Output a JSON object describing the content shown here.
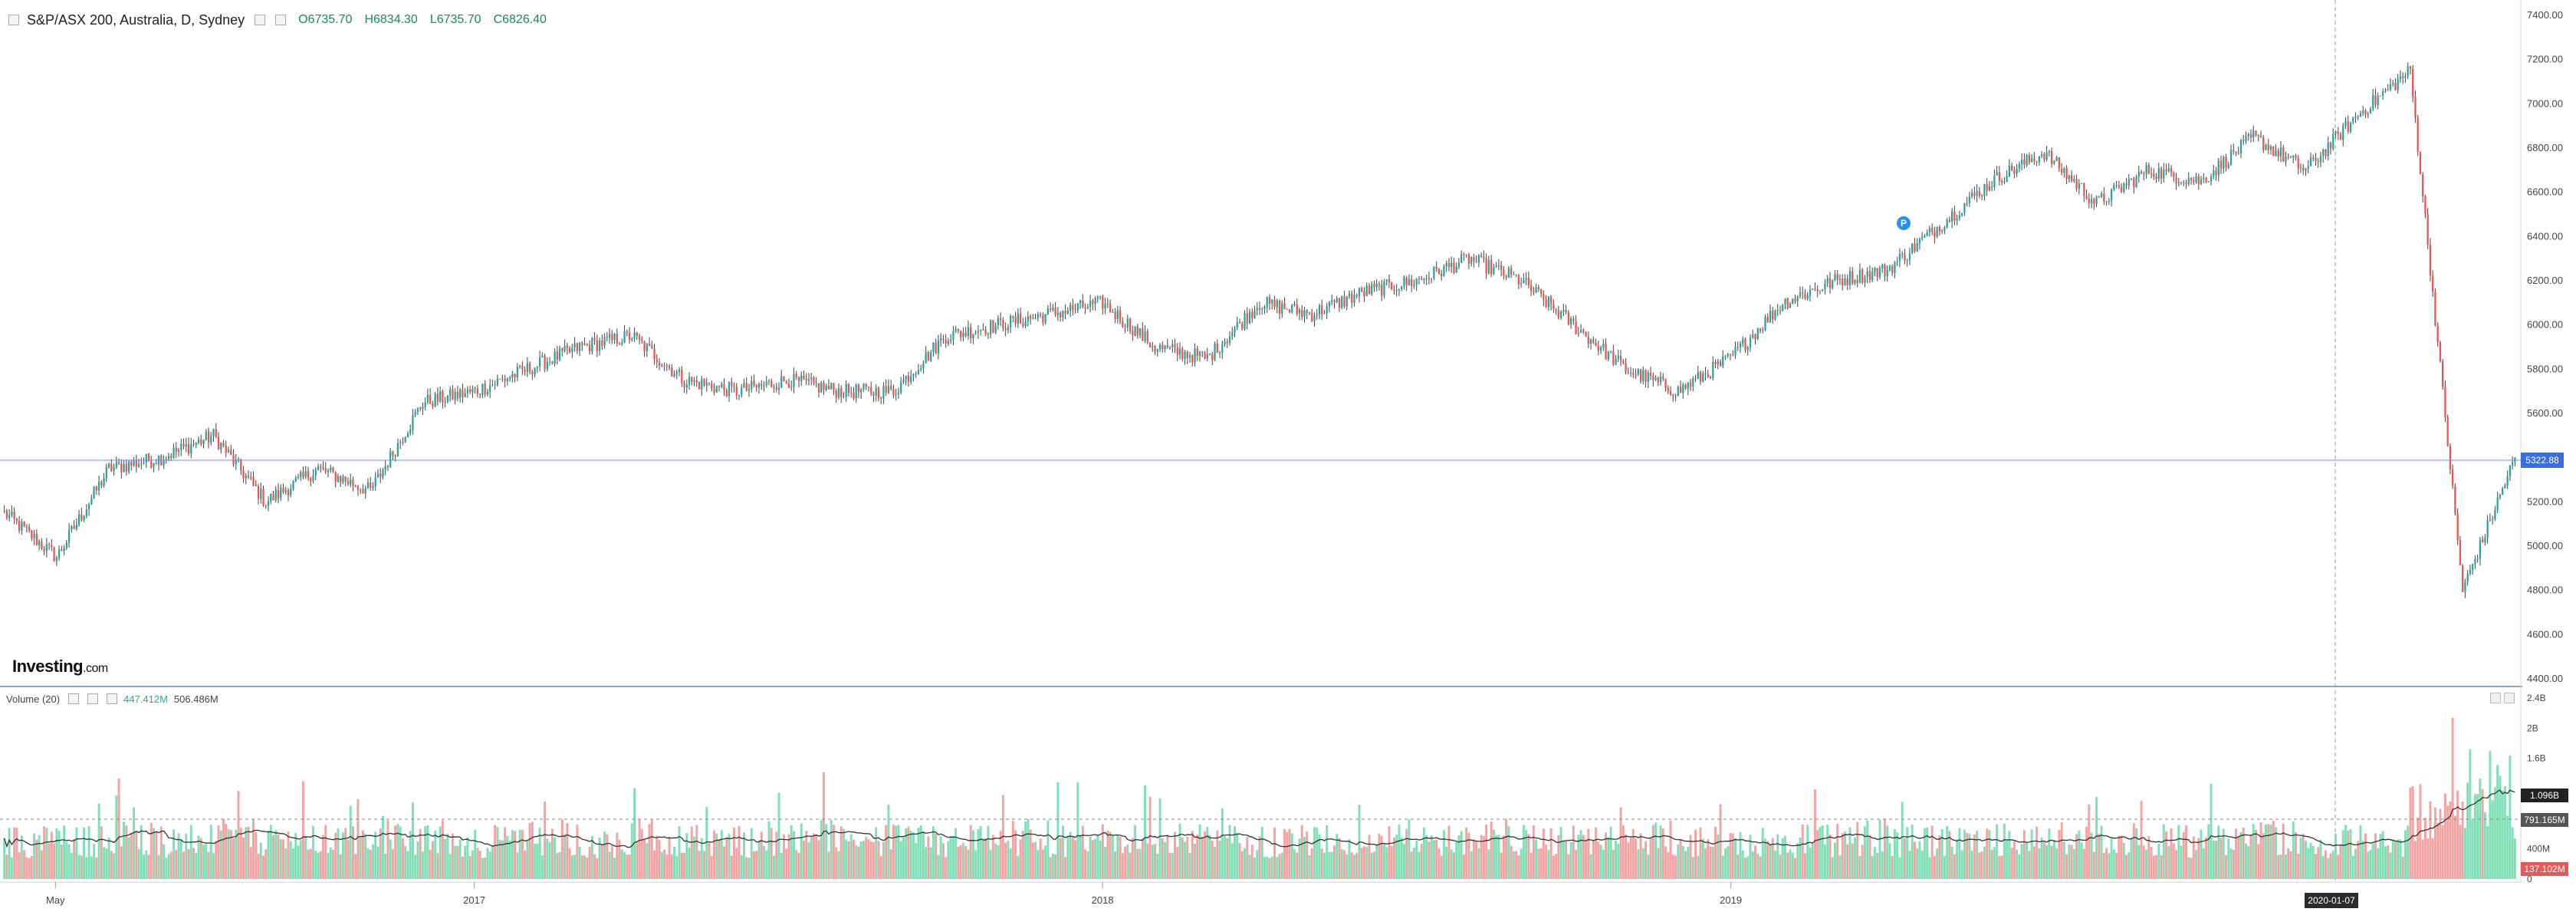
{
  "header": {
    "symbol": "S&P/ASX 200, Australia, D, Sydney",
    "open": "O6735.70",
    "high": "H6834.30",
    "low": "L6735.70",
    "close": "C6826.40"
  },
  "volume_panel": {
    "title": "Volume (20)",
    "value_1": "447.412M",
    "value_2": "506.486M"
  },
  "logo": {
    "main": "Investing",
    "suffix": ".com"
  },
  "price_tag": "5322.88",
  "volume_tags": {
    "a": "1.096B",
    "b": "791.165M",
    "c": "137.102M"
  },
  "crosshair_date": "2020-01-07",
  "event_marker": "P",
  "colors": {
    "up": "#26a69a",
    "down": "#ef5350",
    "vol_up": "#7fe0b8",
    "vol_down": "#f4a3a3",
    "price_line": "#4a6fd8"
  },
  "price_axis": {
    "ticks": [
      "7400.00",
      "7200.00",
      "7000.00",
      "6800.00",
      "6600.00",
      "6400.00",
      "6200.00",
      "6000.00",
      "5800.00",
      "5600.00",
      "5400.00",
      "5200.00",
      "5000.00",
      "4800.00",
      "4600.00",
      "4400.00"
    ]
  },
  "volume_axis": {
    "ticks": [
      "2.4B",
      "2B",
      "1.6B",
      "400M",
      "0"
    ]
  },
  "time_axis": {
    "labels": [
      "May",
      "2017",
      "2018",
      "2019"
    ]
  },
  "chart_data": {
    "type": "candlestick",
    "title": "S&P/ASX 200, Australia, D, Sydney",
    "ylim": [
      4400,
      7400
    ],
    "x_range": [
      "2016-04",
      "2020-04"
    ],
    "series": [
      {
        "name": "price",
        "x": [
          "2016-04",
          "2016-05",
          "2016-06",
          "2016-07",
          "2016-08",
          "2016-09",
          "2016-10",
          "2016-11",
          "2016-12",
          "2017-01",
          "2017-02",
          "2017-03",
          "2017-04",
          "2017-05",
          "2017-06",
          "2017-07",
          "2017-08",
          "2017-09",
          "2017-10",
          "2017-11",
          "2017-12",
          "2018-01",
          "2018-02",
          "2018-03",
          "2018-04",
          "2018-05",
          "2018-06",
          "2018-07",
          "2018-08",
          "2018-09",
          "2018-10",
          "2018-11",
          "2018-12",
          "2019-01",
          "2019-02",
          "2019-03",
          "2019-04",
          "2019-05",
          "2019-06",
          "2019-07",
          "2019-08",
          "2019-09",
          "2019-10",
          "2019-11",
          "2019-12",
          "2020-01",
          "2020-02",
          "2020-03",
          "2020-04"
        ],
        "values": [
          5150,
          4950,
          5350,
          5400,
          5500,
          5200,
          5350,
          5250,
          5650,
          5700,
          5800,
          5900,
          5950,
          5750,
          5700,
          5750,
          5700,
          5700,
          5950,
          6000,
          6050,
          6100,
          5900,
          5850,
          6100,
          6050,
          6150,
          6200,
          6300,
          6200,
          6000,
          5800,
          5700,
          5850,
          6100,
          6200,
          6250,
          6450,
          6650,
          6780,
          6550,
          6700,
          6650,
          6850,
          6700,
          6950,
          7150,
          4800,
          5400
        ]
      },
      {
        "name": "volume",
        "values": [
          0.5,
          0.5,
          0.55,
          0.5,
          0.55,
          0.5,
          0.5,
          0.55,
          0.5,
          0.5,
          0.55,
          0.5,
          0.55,
          0.5,
          0.5,
          0.55,
          0.5,
          0.5,
          0.5,
          0.55,
          0.5,
          0.5,
          0.55,
          0.5,
          0.5,
          0.5,
          0.5,
          0.5,
          0.55,
          0.5,
          0.5,
          0.55,
          0.5,
          0.5,
          0.5,
          0.55,
          0.5,
          0.5,
          0.55,
          0.5,
          0.55,
          0.5,
          0.5,
          0.55,
          0.5,
          0.5,
          0.9,
          1.2,
          0.9
        ]
      }
    ]
  }
}
